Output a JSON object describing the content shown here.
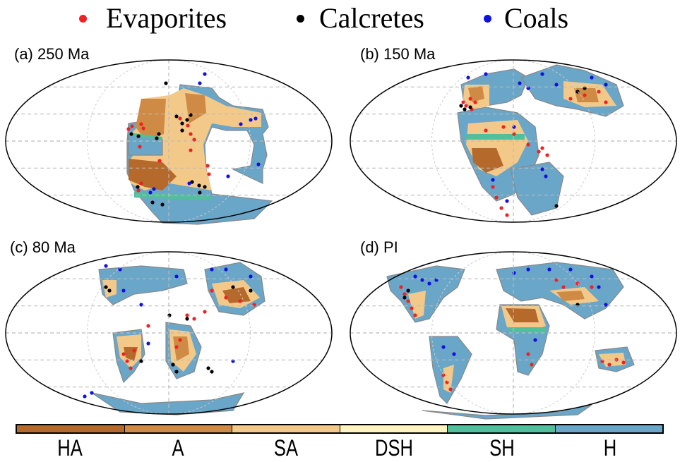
{
  "legend": {
    "items": [
      {
        "label": "Evaporites",
        "color": "#ee2222"
      },
      {
        "label": "Calcretes",
        "color": "#000000"
      },
      {
        "label": "Coals",
        "color": "#1111dd"
      }
    ]
  },
  "panels": [
    {
      "label": "(a) 250 Ma"
    },
    {
      "label": "(b) 150 Ma"
    },
    {
      "label": "(c) 80 Ma"
    },
    {
      "label": "(d) PI"
    }
  ],
  "colorbar": {
    "categories": [
      {
        "label": "HA",
        "color": "#b5692b"
      },
      {
        "label": "A",
        "color": "#cf8b45"
      },
      {
        "label": "SA",
        "color": "#f3c98a"
      },
      {
        "label": "DSH",
        "color": "#fff3c0"
      },
      {
        "label": "SH",
        "color": "#52bf9c"
      },
      {
        "label": "H",
        "color": "#6aa6c8"
      }
    ]
  }
}
